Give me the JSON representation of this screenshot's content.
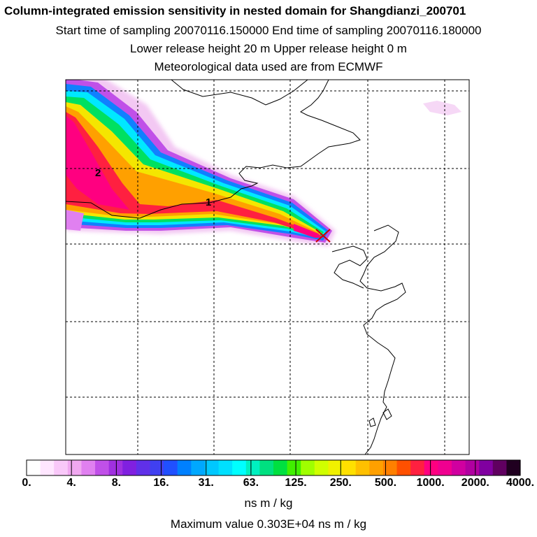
{
  "chart_data": {
    "type": "heatmap",
    "title": "Column-integrated emission sensitivity in nested domain for Shangdianzi_200701",
    "subtitle_lines": [
      "Start time of sampling 20070116.150000     End time of sampling 20070116.180000",
      "Lower release height   20 m          Upper release height    0 m",
      "Meteorological data used are from ECMWF"
    ],
    "colorbar": {
      "ticks": [
        "0.",
        "4.",
        "8.",
        "16.",
        "31.",
        "63.",
        "125.",
        "250.",
        "500.",
        "1000.",
        "2000.",
        "4000."
      ],
      "units": "ns m / kg",
      "colors": [
        "#ffffff",
        "#ffe6ff",
        "#f9c8f9",
        "#f0a8f0",
        "#e080f0",
        "#c050e8",
        "#a030e0",
        "#8020e0",
        "#6030e8",
        "#4040f0",
        "#2050ff",
        "#0080ff",
        "#00a8ff",
        "#00c8ff",
        "#00e0ff",
        "#00ffff",
        "#00f0c0",
        "#00e080",
        "#00e040",
        "#40f000",
        "#a0ff00",
        "#d0ff00",
        "#f0f000",
        "#ffe000",
        "#ffc000",
        "#ffa000",
        "#ff8000",
        "#ff5000",
        "#ff2040",
        "#ff0080",
        "#f00090",
        "#d000a0",
        "#b000a0",
        "#8000a0",
        "#600060",
        "#200020"
      ]
    },
    "contour_labels": [
      "2",
      "1"
    ],
    "max_value_text": "Maximum value  0.303E+04 ns m / kg"
  },
  "colors": {
    "grid": "#000000",
    "coast": "#000000"
  },
  "icons": {
    "receptor": "receptor-x-icon"
  }
}
